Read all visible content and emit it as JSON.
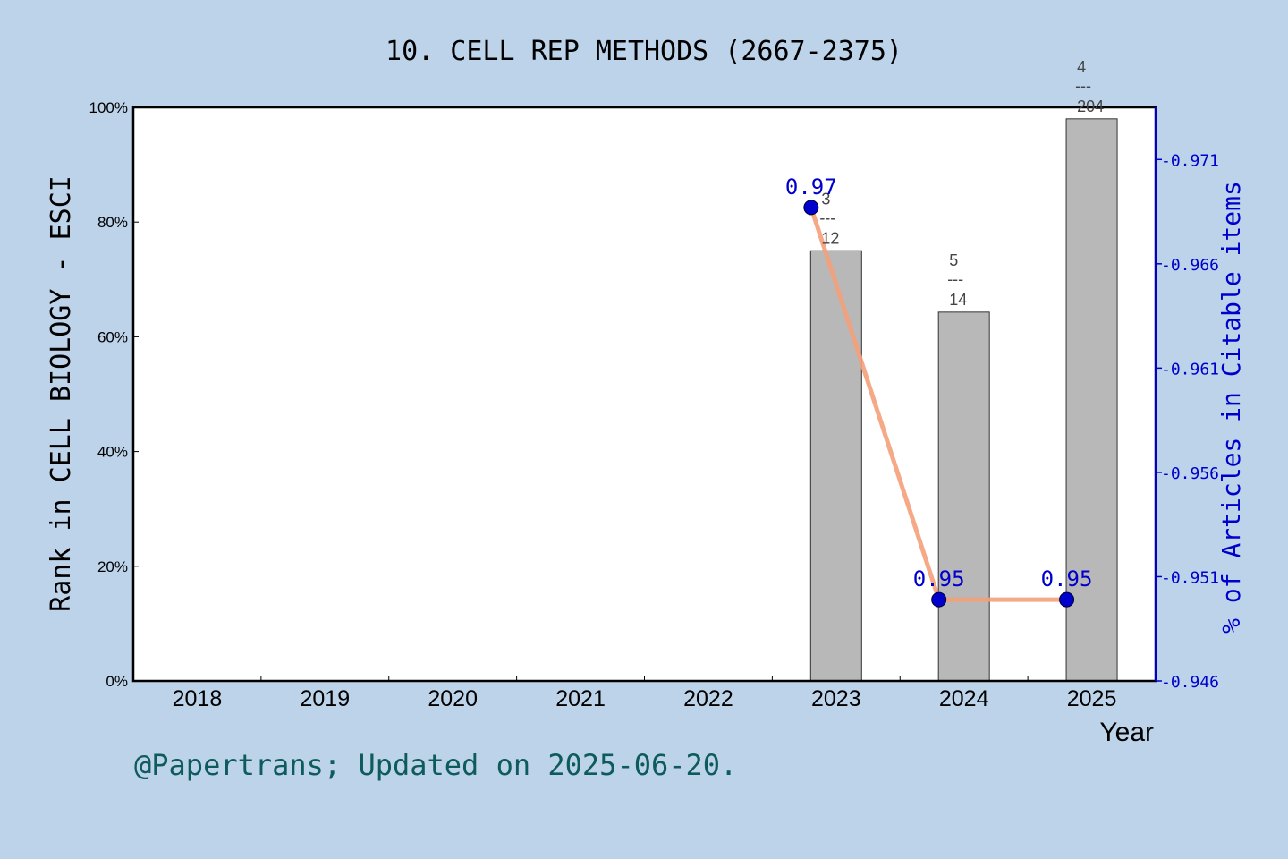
{
  "chart_data": {
    "type": "bar+line",
    "title": "10. CELL REP METHODS (2667-2375)",
    "xlabel": "Year",
    "ylabel_left": "Rank in CELL BIOLOGY - ESCI",
    "ylabel_right": "% of Articles in Citable items",
    "categories": [
      "2018",
      "2019",
      "2020",
      "2021",
      "2022",
      "2023",
      "2024",
      "2025"
    ],
    "ylim_left": [
      0,
      100
    ],
    "yticks_left": [
      "0%",
      "20%",
      "40%",
      "60%",
      "80%",
      "100%"
    ],
    "ylim_right": [
      0.946,
      0.9735
    ],
    "yticks_right": [
      "0.946",
      "0.951",
      "0.956",
      "0.961",
      "0.966",
      "0.971"
    ],
    "bars": [
      {
        "year": "2023",
        "value": 75.0,
        "num": "3",
        "den": "12"
      },
      {
        "year": "2024",
        "value": 64.3,
        "num": "5",
        "den": "14"
      },
      {
        "year": "2025",
        "value": 98.0,
        "num": "4",
        "den": "204"
      }
    ],
    "line": [
      {
        "year": "2023",
        "value": 0.9687,
        "label": "0.97"
      },
      {
        "year": "2024",
        "value": 0.9499,
        "label": "0.95"
      },
      {
        "year": "2025",
        "value": 0.9499,
        "label": "0.95"
      }
    ],
    "frac_sep": "---",
    "colors": {
      "background": "#bcd3ea",
      "bar": "#b8b8b8",
      "line": "#f4a07a",
      "point": "#0000cc",
      "right_axis": "#0000cc"
    }
  },
  "footer": "@Papertrans; Updated on 2025-06-20."
}
